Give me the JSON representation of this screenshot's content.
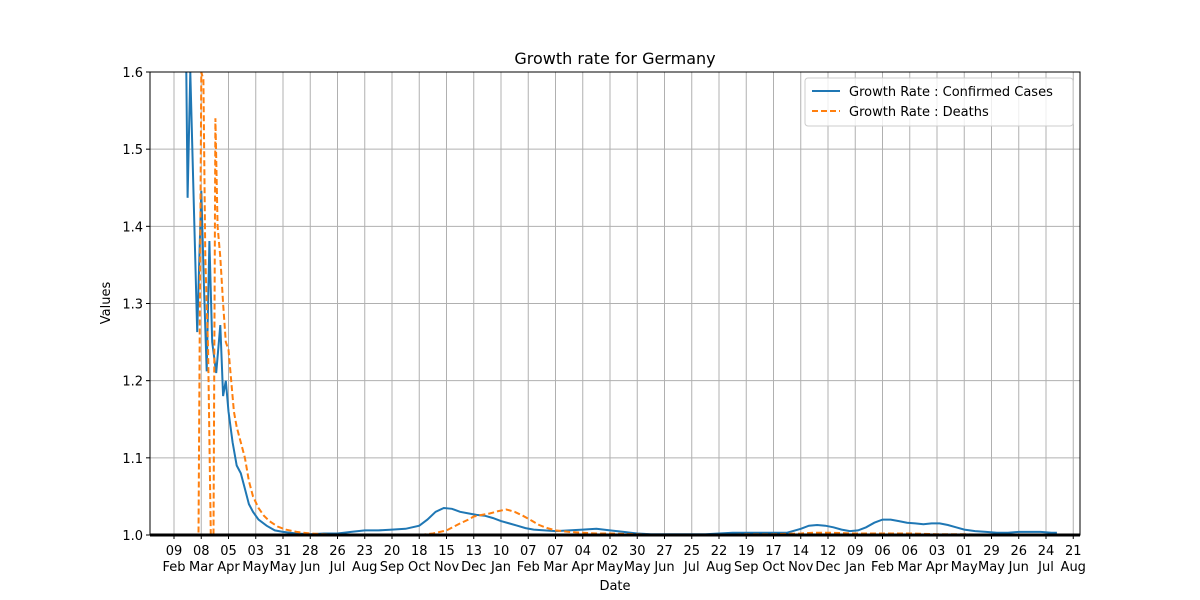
{
  "chart_data": {
    "type": "line",
    "title": "Growth rate for Germany",
    "xlabel": "Date",
    "ylabel": "Values",
    "ylim": [
      1.0,
      1.6
    ],
    "yticks": [
      "1.0",
      "1.1",
      "1.2",
      "1.3",
      "1.4",
      "1.5",
      "1.6"
    ],
    "grid": true,
    "legend_position": "top-right",
    "xtick_labels": [
      {
        "day": "09",
        "month": "Feb"
      },
      {
        "day": "08",
        "month": "Mar"
      },
      {
        "day": "05",
        "month": "Apr"
      },
      {
        "day": "03",
        "month": "May"
      },
      {
        "day": "31",
        "month": "May"
      },
      {
        "day": "28",
        "month": "Jun"
      },
      {
        "day": "26",
        "month": "Jul"
      },
      {
        "day": "23",
        "month": "Aug"
      },
      {
        "day": "20",
        "month": "Sep"
      },
      {
        "day": "18",
        "month": "Oct"
      },
      {
        "day": "15",
        "month": "Nov"
      },
      {
        "day": "13",
        "month": "Dec"
      },
      {
        "day": "10",
        "month": "Jan"
      },
      {
        "day": "07",
        "month": "Feb"
      },
      {
        "day": "07",
        "month": "Mar"
      },
      {
        "day": "04",
        "month": "Apr"
      },
      {
        "day": "02",
        "month": "May"
      },
      {
        "day": "30",
        "month": "May"
      },
      {
        "day": "27",
        "month": "Jun"
      },
      {
        "day": "25",
        "month": "Jul"
      },
      {
        "day": "22",
        "month": "Aug"
      },
      {
        "day": "19",
        "month": "Sep"
      },
      {
        "day": "17",
        "month": "Oct"
      },
      {
        "day": "14",
        "month": "Nov"
      },
      {
        "day": "12",
        "month": "Dec"
      },
      {
        "day": "09",
        "month": "Jan"
      },
      {
        "day": "06",
        "month": "Feb"
      },
      {
        "day": "06",
        "month": "Mar"
      },
      {
        "day": "03",
        "month": "Apr"
      },
      {
        "day": "01",
        "month": "May"
      },
      {
        "day": "29",
        "month": "May"
      },
      {
        "day": "26",
        "month": "Jun"
      },
      {
        "day": "24",
        "month": "Jul"
      },
      {
        "day": "21",
        "month": "Aug"
      }
    ],
    "series": [
      {
        "name": "Growth Rate : Confirmed Cases",
        "color": "#1f77b4",
        "style": "solid",
        "points": [
          [
            0.45,
            1.6
          ],
          [
            0.5,
            1.437
          ],
          [
            0.6,
            1.6
          ],
          [
            0.85,
            1.263
          ],
          [
            1.0,
            1.446
          ],
          [
            1.1,
            1.32
          ],
          [
            1.2,
            1.212
          ],
          [
            1.3,
            1.381
          ],
          [
            1.4,
            1.25
          ],
          [
            1.55,
            1.21
          ],
          [
            1.7,
            1.272
          ],
          [
            1.8,
            1.18
          ],
          [
            1.9,
            1.2
          ],
          [
            2.0,
            1.16
          ],
          [
            2.15,
            1.12
          ],
          [
            2.3,
            1.09
          ],
          [
            2.45,
            1.08
          ],
          [
            2.6,
            1.06
          ],
          [
            2.75,
            1.04
          ],
          [
            2.9,
            1.03
          ],
          [
            3.1,
            1.02
          ],
          [
            3.4,
            1.012
          ],
          [
            3.7,
            1.006
          ],
          [
            4.0,
            1.004
          ],
          [
            4.5,
            1.002
          ],
          [
            5.0,
            1.001
          ],
          [
            5.5,
            1.002
          ],
          [
            6.0,
            1.002
          ],
          [
            6.5,
            1.004
          ],
          [
            7.0,
            1.006
          ],
          [
            7.5,
            1.006
          ],
          [
            8.0,
            1.007
          ],
          [
            8.5,
            1.008
          ],
          [
            9.0,
            1.012
          ],
          [
            9.3,
            1.02
          ],
          [
            9.6,
            1.03
          ],
          [
            9.9,
            1.035
          ],
          [
            10.2,
            1.034
          ],
          [
            10.5,
            1.03
          ],
          [
            10.8,
            1.028
          ],
          [
            11.1,
            1.026
          ],
          [
            11.4,
            1.025
          ],
          [
            11.7,
            1.022
          ],
          [
            12.0,
            1.018
          ],
          [
            12.3,
            1.015
          ],
          [
            12.6,
            1.012
          ],
          [
            12.9,
            1.009
          ],
          [
            13.2,
            1.007
          ],
          [
            13.6,
            1.006
          ],
          [
            14.0,
            1.005
          ],
          [
            14.5,
            1.006
          ],
          [
            15.0,
            1.007
          ],
          [
            15.5,
            1.008
          ],
          [
            16.0,
            1.006
          ],
          [
            16.5,
            1.004
          ],
          [
            17.0,
            1.002
          ],
          [
            17.5,
            1.001
          ],
          [
            18.0,
            1.001
          ],
          [
            18.5,
            1.001
          ],
          [
            19.0,
            1.001
          ],
          [
            19.5,
            1.001
          ],
          [
            20.0,
            1.002
          ],
          [
            20.5,
            1.003
          ],
          [
            21.0,
            1.003
          ],
          [
            21.5,
            1.003
          ],
          [
            22.0,
            1.003
          ],
          [
            22.5,
            1.003
          ],
          [
            23.0,
            1.008
          ],
          [
            23.3,
            1.012
          ],
          [
            23.6,
            1.013
          ],
          [
            23.9,
            1.012
          ],
          [
            24.2,
            1.01
          ],
          [
            24.5,
            1.007
          ],
          [
            24.8,
            1.005
          ],
          [
            25.1,
            1.006
          ],
          [
            25.4,
            1.01
          ],
          [
            25.7,
            1.016
          ],
          [
            26.0,
            1.02
          ],
          [
            26.3,
            1.02
          ],
          [
            26.6,
            1.018
          ],
          [
            26.9,
            1.016
          ],
          [
            27.2,
            1.015
          ],
          [
            27.5,
            1.014
          ],
          [
            27.8,
            1.015
          ],
          [
            28.1,
            1.015
          ],
          [
            28.4,
            1.013
          ],
          [
            28.7,
            1.01
          ],
          [
            29.0,
            1.007
          ],
          [
            29.4,
            1.005
          ],
          [
            29.8,
            1.004
          ],
          [
            30.2,
            1.003
          ],
          [
            30.6,
            1.003
          ],
          [
            31.0,
            1.004
          ],
          [
            31.4,
            1.004
          ],
          [
            31.8,
            1.004
          ],
          [
            32.2,
            1.003
          ],
          [
            32.4,
            1.003
          ]
        ]
      },
      {
        "name": "Growth Rate : Deaths",
        "color": "#ff7f0e",
        "style": "dashed",
        "points": [
          [
            0.0,
            1.0
          ],
          [
            0.9,
            1.0
          ],
          [
            0.95,
            1.3
          ],
          [
            1.0,
            1.6
          ],
          [
            1.08,
            1.59
          ],
          [
            1.15,
            1.36
          ],
          [
            1.25,
            1.24
          ],
          [
            1.35,
            1.0
          ],
          [
            1.45,
            1.0
          ],
          [
            1.52,
            1.54
          ],
          [
            1.6,
            1.4
          ],
          [
            1.7,
            1.36
          ],
          [
            1.8,
            1.3
          ],
          [
            1.9,
            1.25
          ],
          [
            2.0,
            1.24
          ],
          [
            2.1,
            1.2
          ],
          [
            2.2,
            1.16
          ],
          [
            2.3,
            1.14
          ],
          [
            2.45,
            1.12
          ],
          [
            2.6,
            1.1
          ],
          [
            2.75,
            1.07
          ],
          [
            2.9,
            1.05
          ],
          [
            3.1,
            1.035
          ],
          [
            3.3,
            1.025
          ],
          [
            3.5,
            1.018
          ],
          [
            3.8,
            1.011
          ],
          [
            4.1,
            1.007
          ],
          [
            4.5,
            1.004
          ],
          [
            5.0,
            1.002
          ],
          [
            5.5,
            1.001
          ],
          [
            6.0,
            1.0
          ],
          [
            7.0,
            1.0
          ],
          [
            8.0,
            1.0
          ],
          [
            9.0,
            1.0
          ],
          [
            9.5,
            1.002
          ],
          [
            10.0,
            1.006
          ],
          [
            10.5,
            1.015
          ],
          [
            10.8,
            1.02
          ],
          [
            11.0,
            1.024
          ],
          [
            11.3,
            1.026
          ],
          [
            11.6,
            1.028
          ],
          [
            11.9,
            1.031
          ],
          [
            12.2,
            1.033
          ],
          [
            12.5,
            1.03
          ],
          [
            12.8,
            1.025
          ],
          [
            13.1,
            1.019
          ],
          [
            13.4,
            1.013
          ],
          [
            13.7,
            1.009
          ],
          [
            14.0,
            1.006
          ],
          [
            14.5,
            1.004
          ],
          [
            15.0,
            1.003
          ],
          [
            15.5,
            1.002
          ],
          [
            16.0,
            1.002
          ],
          [
            17.0,
            1.001
          ],
          [
            18.0,
            1.0
          ],
          [
            19.0,
            1.0
          ],
          [
            20.0,
            1.0
          ],
          [
            21.0,
            1.001
          ],
          [
            22.0,
            1.001
          ],
          [
            23.0,
            1.002
          ],
          [
            23.5,
            1.003
          ],
          [
            24.0,
            1.003
          ],
          [
            25.0,
            1.002
          ],
          [
            26.0,
            1.002
          ],
          [
            27.0,
            1.002
          ],
          [
            28.0,
            1.001
          ],
          [
            29.0,
            1.001
          ],
          [
            30.0,
            1.0
          ],
          [
            31.0,
            1.0
          ],
          [
            32.4,
            1.0
          ]
        ]
      }
    ]
  }
}
